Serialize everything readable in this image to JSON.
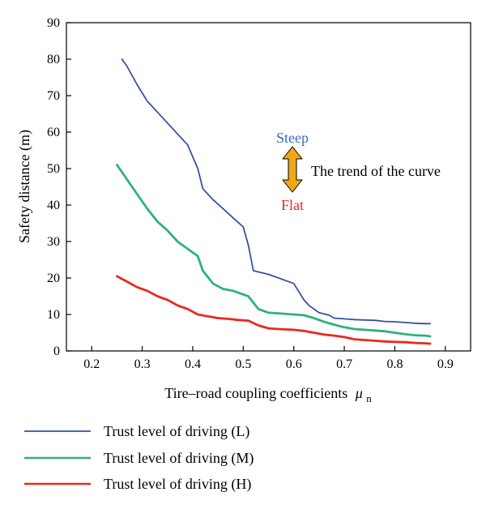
{
  "chart_data": {
    "type": "line",
    "xlabel": "Tire–road coupling coefficients",
    "xlabel_symbol": "μ",
    "xlabel_subscript": "n",
    "ylabel": "Safety distance (m)",
    "xlim": [
      0.15,
      0.95
    ],
    "ylim": [
      0,
      90
    ],
    "x_ticks": [
      "0.2",
      "0.3",
      "0.4",
      "0.5",
      "0.6",
      "0.7",
      "0.8",
      "0.9"
    ],
    "y_ticks": [
      "0",
      "10",
      "20",
      "30",
      "40",
      "50",
      "60",
      "70",
      "80",
      "90"
    ],
    "grid": false,
    "legend_position": "bottom",
    "series": [
      {
        "name": "Trust level of driving (L)",
        "color": "#3a4fa3",
        "x": [
          0.26,
          0.27,
          0.29,
          0.31,
          0.33,
          0.35,
          0.37,
          0.39,
          0.41,
          0.42,
          0.44,
          0.46,
          0.48,
          0.5,
          0.51,
          0.52,
          0.55,
          0.57,
          0.6,
          0.62,
          0.63,
          0.65,
          0.67,
          0.68,
          0.7,
          0.72,
          0.74,
          0.76,
          0.78,
          0.8,
          0.82,
          0.84,
          0.86,
          0.87
        ],
        "values": [
          80,
          78,
          73,
          68.5,
          65.5,
          62.5,
          59.5,
          56.5,
          50,
          44.5,
          41.5,
          39,
          36.5,
          34,
          29,
          22,
          21,
          20,
          18.5,
          14,
          12.5,
          10.5,
          9.8,
          9,
          8.8,
          8.6,
          8.5,
          8.4,
          8.1,
          8.0,
          7.8,
          7.6,
          7.5,
          7.5
        ]
      },
      {
        "name": "Trust level of driving (M)",
        "color": "#2db37a",
        "x": [
          0.25,
          0.27,
          0.29,
          0.31,
          0.33,
          0.35,
          0.37,
          0.39,
          0.41,
          0.42,
          0.44,
          0.46,
          0.48,
          0.5,
          0.51,
          0.53,
          0.55,
          0.57,
          0.6,
          0.62,
          0.64,
          0.66,
          0.68,
          0.7,
          0.72,
          0.74,
          0.76,
          0.78,
          0.8,
          0.82,
          0.84,
          0.86,
          0.87
        ],
        "values": [
          51,
          47,
          43,
          39,
          35.5,
          33,
          30,
          28,
          26,
          22,
          18.5,
          17,
          16.5,
          15.5,
          15,
          11.5,
          10.5,
          10.3,
          10,
          9.8,
          9,
          8,
          7.2,
          6.5,
          6,
          5.8,
          5.6,
          5.4,
          5.0,
          4.6,
          4.3,
          4.2,
          4.0
        ]
      },
      {
        "name": "Trust level of driving (H)",
        "color": "#e8291f",
        "x": [
          0.25,
          0.27,
          0.29,
          0.31,
          0.33,
          0.35,
          0.37,
          0.39,
          0.41,
          0.43,
          0.45,
          0.47,
          0.49,
          0.51,
          0.53,
          0.55,
          0.57,
          0.6,
          0.62,
          0.64,
          0.66,
          0.68,
          0.7,
          0.72,
          0.74,
          0.76,
          0.78,
          0.8,
          0.82,
          0.84,
          0.86,
          0.87
        ],
        "values": [
          20.5,
          19,
          17.5,
          16.5,
          15,
          14,
          12.5,
          11.5,
          10,
          9.5,
          9,
          8.8,
          8.5,
          8.3,
          7,
          6.2,
          6,
          5.8,
          5.5,
          5,
          4.5,
          4.2,
          3.8,
          3.2,
          3.0,
          2.8,
          2.6,
          2.5,
          2.4,
          2.2,
          2.1,
          2.0
        ]
      }
    ],
    "annotations": {
      "steep": {
        "text": "Steep",
        "color": "#3a6cb8"
      },
      "flat": {
        "text": "Flat",
        "color": "#e8291f"
      },
      "trend": {
        "text": "The trend of the curve",
        "color": "#000000"
      },
      "arrow_color": "#f0a818"
    }
  }
}
